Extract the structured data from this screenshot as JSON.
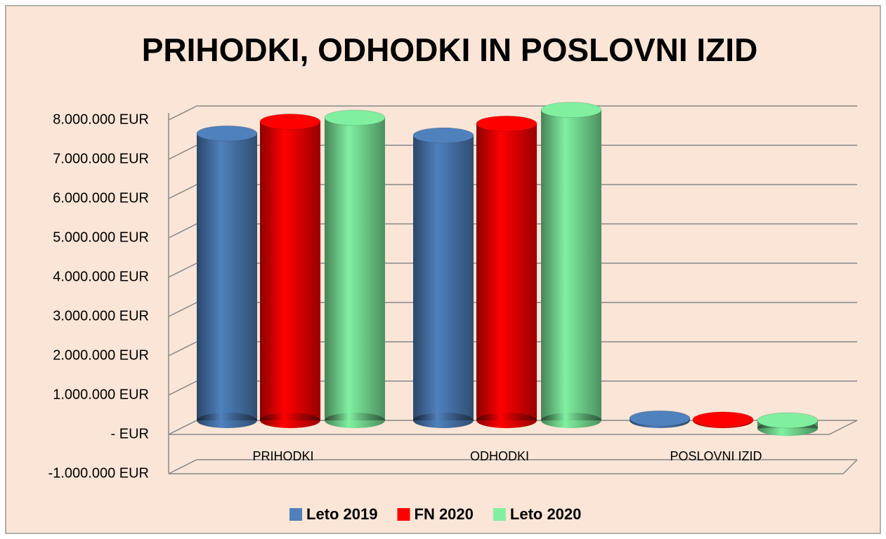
{
  "chart_data": {
    "type": "bar",
    "title": "PRIHODKI, ODHODKI IN POSLOVNI IZID",
    "categories": [
      "PRIHODKI",
      "ODHODKI",
      "POSLOVNI IZID"
    ],
    "series": [
      {
        "name": "Leto 2019",
        "color": "#4f81bd",
        "values": [
          7300000,
          7250000,
          50000
        ]
      },
      {
        "name": "FN 2020",
        "color": "#ff0000",
        "values": [
          7600000,
          7550000,
          20000
        ]
      },
      {
        "name": "Leto 2020",
        "color": "#80f0a0",
        "values": [
          7700000,
          7900000,
          -200000
        ]
      }
    ],
    "ylim": [
      -1000000,
      8000000
    ],
    "yticks": [
      {
        "value": -1000000,
        "label": "-1.000.000 EUR"
      },
      {
        "value": 0,
        "label": "- EUR"
      },
      {
        "value": 1000000,
        "label": "1.000.000 EUR"
      },
      {
        "value": 2000000,
        "label": "2.000.000 EUR"
      },
      {
        "value": 3000000,
        "label": "3.000.000 EUR"
      },
      {
        "value": 4000000,
        "label": "4.000.000 EUR"
      },
      {
        "value": 5000000,
        "label": "5.000.000 EUR"
      },
      {
        "value": 6000000,
        "label": "6.000.000 EUR"
      },
      {
        "value": 7000000,
        "label": "7.000.000 EUR"
      },
      {
        "value": 8000000,
        "label": "8.000.000 EUR"
      }
    ],
    "grid": true,
    "legend": "bottom"
  }
}
